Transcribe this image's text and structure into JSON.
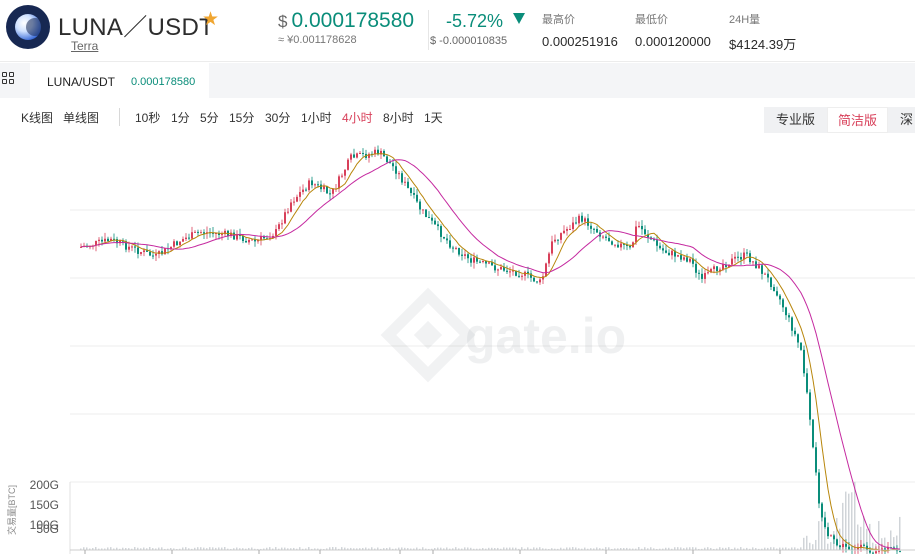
{
  "header": {
    "pair": "LUNA／USDT",
    "network": "Terra",
    "price_currency": "$",
    "price": "0.000178580",
    "price_cny": "≈ ¥0.001178628",
    "change_pct": "-5.72%",
    "change_abs": "$ -0.000010835",
    "stats": [
      {
        "label": "最高价",
        "value": "0.000251916"
      },
      {
        "label": "最低价",
        "value": "0.000120000"
      },
      {
        "label": "24H量",
        "value": "$4124.39万"
      }
    ],
    "colors": {
      "down": "#0a8d7a",
      "up": "#d8405a",
      "star": "#f0a631"
    }
  },
  "tabs": [
    {
      "symbol": "LUNA/USDT",
      "price": "0.000178580"
    }
  ],
  "toolbar": {
    "chart_types": [
      {
        "label": "K线图",
        "active": true
      },
      {
        "label": "单线图",
        "active": false
      }
    ],
    "intervals": [
      {
        "label": "10秒",
        "active": false
      },
      {
        "label": "1分",
        "active": false
      },
      {
        "label": "5分",
        "active": false
      },
      {
        "label": "15分",
        "active": false
      },
      {
        "label": "30分",
        "active": false
      },
      {
        "label": "1小时",
        "active": false
      },
      {
        "label": "4小时",
        "active": true
      },
      {
        "label": "8小时",
        "active": false
      },
      {
        "label": "1天",
        "active": false
      }
    ],
    "versions": [
      {
        "label": "专业版",
        "active": false
      },
      {
        "label": "简洁版",
        "active": true
      },
      {
        "label": "深",
        "active": false
      }
    ]
  },
  "chart": {
    "watermark": "gate.io",
    "volume_axis_title": "交易量[BTC]",
    "volume_ticks": [
      "200G",
      "150G",
      "100G",
      "50G"
    ],
    "colors": {
      "up": "#d8405a",
      "down": "#0a8d7a",
      "ma_fast": "#b8860b",
      "ma_slow": "#c52aa0",
      "volume": "#d0d4d8"
    }
  }
}
